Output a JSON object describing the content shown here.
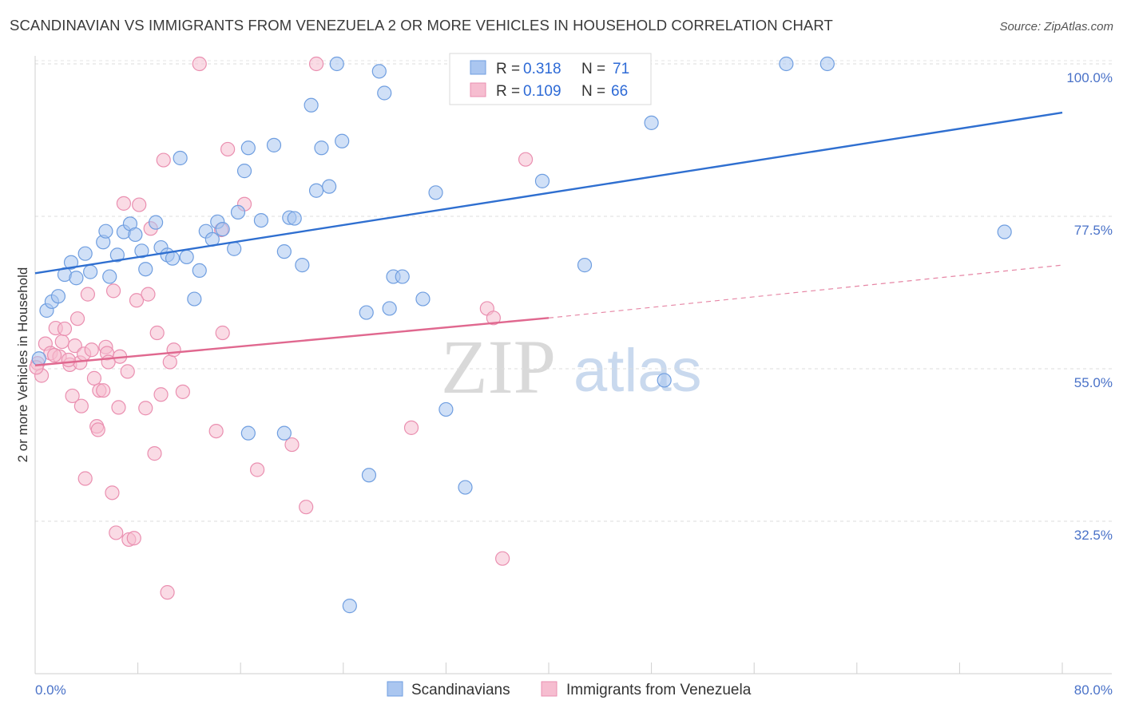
{
  "header": {
    "title": "SCANDINAVIAN VS IMMIGRANTS FROM VENEZUELA 2 OR MORE VEHICLES IN HOUSEHOLD CORRELATION CHART",
    "source": "Source: ZipAtlas.com"
  },
  "watermark": {
    "zip": "ZIP",
    "atlas": "atlas"
  },
  "legend_top": {
    "r_label": "R =",
    "n_label": "N =",
    "rows": [
      {
        "r": "0.318",
        "n": "71"
      },
      {
        "r": "0.109",
        "n": "66"
      }
    ]
  },
  "legend_bottom": {
    "items": [
      "Scandinavians",
      "Immigrants from Venezuela"
    ]
  },
  "chart_data": {
    "type": "scatter",
    "title": "SCANDINAVIAN VS IMMIGRANTS FROM VENEZUELA 2 OR MORE VEHICLES IN HOUSEHOLD CORRELATION CHART",
    "xlabel": "",
    "ylabel": "2 or more Vehicles in Household",
    "xlim": [
      0,
      80
    ],
    "ylim": [
      10,
      102
    ],
    "x_tick_labels": [
      "0.0%",
      "80.0%"
    ],
    "y_ticks": [
      {
        "value": 100,
        "label": "100.0%"
      },
      {
        "value": 77.5,
        "label": "77.5%"
      },
      {
        "value": 55,
        "label": "55.0%"
      },
      {
        "value": 32.5,
        "label": "32.5%"
      }
    ],
    "grid": "horizontal dashed",
    "legend_position": "top-center",
    "colors": {
      "scandinavians_fill": "#aac6f0",
      "scandinavians_stroke": "#6f9ee0",
      "scandinavians_line": "#2f6fd0",
      "venezuela_fill": "#f6bdd0",
      "venezuela_stroke": "#ea8fb0",
      "venezuela_line": "#e0688f"
    },
    "series": [
      {
        "name": "Scandinavians",
        "r": 0.318,
        "n": 71,
        "trend": {
          "x": [
            0,
            80
          ],
          "y": [
            69.1,
            92.8
          ],
          "dashed_from": null
        },
        "points": [
          [
            0.3,
            56.5
          ],
          [
            0.9,
            63.6
          ],
          [
            1.3,
            64.9
          ],
          [
            1.8,
            65.7
          ],
          [
            2.3,
            68.9
          ],
          [
            2.8,
            70.7
          ],
          [
            3.2,
            68.4
          ],
          [
            3.9,
            72.0
          ],
          [
            4.3,
            69.3
          ],
          [
            5.3,
            73.7
          ],
          [
            5.5,
            75.3
          ],
          [
            5.8,
            68.6
          ],
          [
            6.4,
            71.8
          ],
          [
            6.9,
            75.2
          ],
          [
            7.4,
            76.4
          ],
          [
            7.8,
            74.8
          ],
          [
            8.3,
            72.4
          ],
          [
            8.6,
            69.7
          ],
          [
            9.4,
            76.6
          ],
          [
            9.8,
            72.9
          ],
          [
            10.3,
            71.8
          ],
          [
            10.7,
            71.3
          ],
          [
            11.3,
            86.1
          ],
          [
            11.8,
            71.5
          ],
          [
            12.4,
            65.3
          ],
          [
            12.8,
            69.5
          ],
          [
            13.3,
            75.3
          ],
          [
            13.8,
            74.1
          ],
          [
            14.2,
            76.7
          ],
          [
            14.6,
            75.6
          ],
          [
            15.5,
            72.7
          ],
          [
            15.8,
            78.1
          ],
          [
            16.3,
            84.2
          ],
          [
            16.6,
            87.6
          ],
          [
            17.6,
            76.9
          ],
          [
            18.6,
            88.0
          ],
          [
            19.4,
            72.3
          ],
          [
            19.8,
            77.3
          ],
          [
            20.2,
            77.2
          ],
          [
            20.8,
            70.3
          ],
          [
            21.5,
            93.9
          ],
          [
            21.9,
            81.3
          ],
          [
            22.3,
            87.6
          ],
          [
            22.9,
            81.9
          ],
          [
            23.5,
            100
          ],
          [
            23.9,
            88.6
          ],
          [
            25.8,
            63.3
          ],
          [
            26.8,
            98.9
          ],
          [
            27.2,
            95.7
          ],
          [
            27.6,
            63.9
          ],
          [
            27.9,
            68.6
          ],
          [
            28.6,
            68.6
          ],
          [
            30.2,
            65.3
          ],
          [
            31.2,
            81.0
          ],
          [
            32.0,
            49.0
          ],
          [
            33.5,
            37.5
          ],
          [
            35.8,
            100
          ],
          [
            36.2,
            100
          ],
          [
            39.5,
            82.7
          ],
          [
            40.5,
            100
          ],
          [
            41.5,
            100
          ],
          [
            42.8,
            70.3
          ],
          [
            48.0,
            91.3
          ],
          [
            49.0,
            53.3
          ],
          [
            58.5,
            100
          ],
          [
            61.7,
            100
          ],
          [
            75.5,
            75.2
          ],
          [
            24.5,
            20.0
          ],
          [
            26.0,
            39.3
          ],
          [
            19.4,
            45.5
          ],
          [
            16.6,
            45.5
          ]
        ]
      },
      {
        "name": "Immigrants from Venezuela",
        "r": 0.109,
        "n": 66,
        "trend": {
          "x": [
            0,
            40,
            80
          ],
          "y": [
            55.5,
            62.5,
            70.3
          ],
          "dashed_from": 40
        },
        "points": [
          [
            0.2,
            55.8
          ],
          [
            0.5,
            54.0
          ],
          [
            0.8,
            58.7
          ],
          [
            1.2,
            57.3
          ],
          [
            1.6,
            61.0
          ],
          [
            1.9,
            56.8
          ],
          [
            2.1,
            59.0
          ],
          [
            2.3,
            60.9
          ],
          [
            2.7,
            55.6
          ],
          [
            2.9,
            51.0
          ],
          [
            3.1,
            58.4
          ],
          [
            3.3,
            62.4
          ],
          [
            3.5,
            55.9
          ],
          [
            3.6,
            49.5
          ],
          [
            3.8,
            57.2
          ],
          [
            3.9,
            38.8
          ],
          [
            4.1,
            66.0
          ],
          [
            4.4,
            57.8
          ],
          [
            4.6,
            53.6
          ],
          [
            4.8,
            46.5
          ],
          [
            4.9,
            46.0
          ],
          [
            5.0,
            51.8
          ],
          [
            5.3,
            51.8
          ],
          [
            5.5,
            58.2
          ],
          [
            5.6,
            57.3
          ],
          [
            6.0,
            36.7
          ],
          [
            6.1,
            66.5
          ],
          [
            6.3,
            30.8
          ],
          [
            6.5,
            49.3
          ],
          [
            6.9,
            79.4
          ],
          [
            7.2,
            54.6
          ],
          [
            7.3,
            29.8
          ],
          [
            7.7,
            30.0
          ],
          [
            7.9,
            65.1
          ],
          [
            8.1,
            79.2
          ],
          [
            8.6,
            49.2
          ],
          [
            8.8,
            66.0
          ],
          [
            9.0,
            75.7
          ],
          [
            9.3,
            42.5
          ],
          [
            9.5,
            60.3
          ],
          [
            9.8,
            51.2
          ],
          [
            10.0,
            85.8
          ],
          [
            10.3,
            22.0
          ],
          [
            10.5,
            56.0
          ],
          [
            10.8,
            57.8
          ],
          [
            11.5,
            51.6
          ],
          [
            14.1,
            45.8
          ],
          [
            14.6,
            60.3
          ],
          [
            15.0,
            87.4
          ],
          [
            16.3,
            79.3
          ],
          [
            17.3,
            40.1
          ],
          [
            20.0,
            43.8
          ],
          [
            21.1,
            34.6
          ],
          [
            21.9,
            100
          ],
          [
            12.8,
            100
          ],
          [
            14.5,
            75.5
          ],
          [
            29.3,
            46.3
          ],
          [
            35.2,
            63.9
          ],
          [
            35.7,
            62.5
          ],
          [
            36.4,
            27.0
          ],
          [
            38.2,
            85.9
          ],
          [
            1.5,
            57.0
          ],
          [
            0.1,
            55.2
          ],
          [
            2.6,
            56.3
          ],
          [
            6.6,
            56.8
          ],
          [
            5.7,
            56.0
          ]
        ]
      }
    ]
  }
}
